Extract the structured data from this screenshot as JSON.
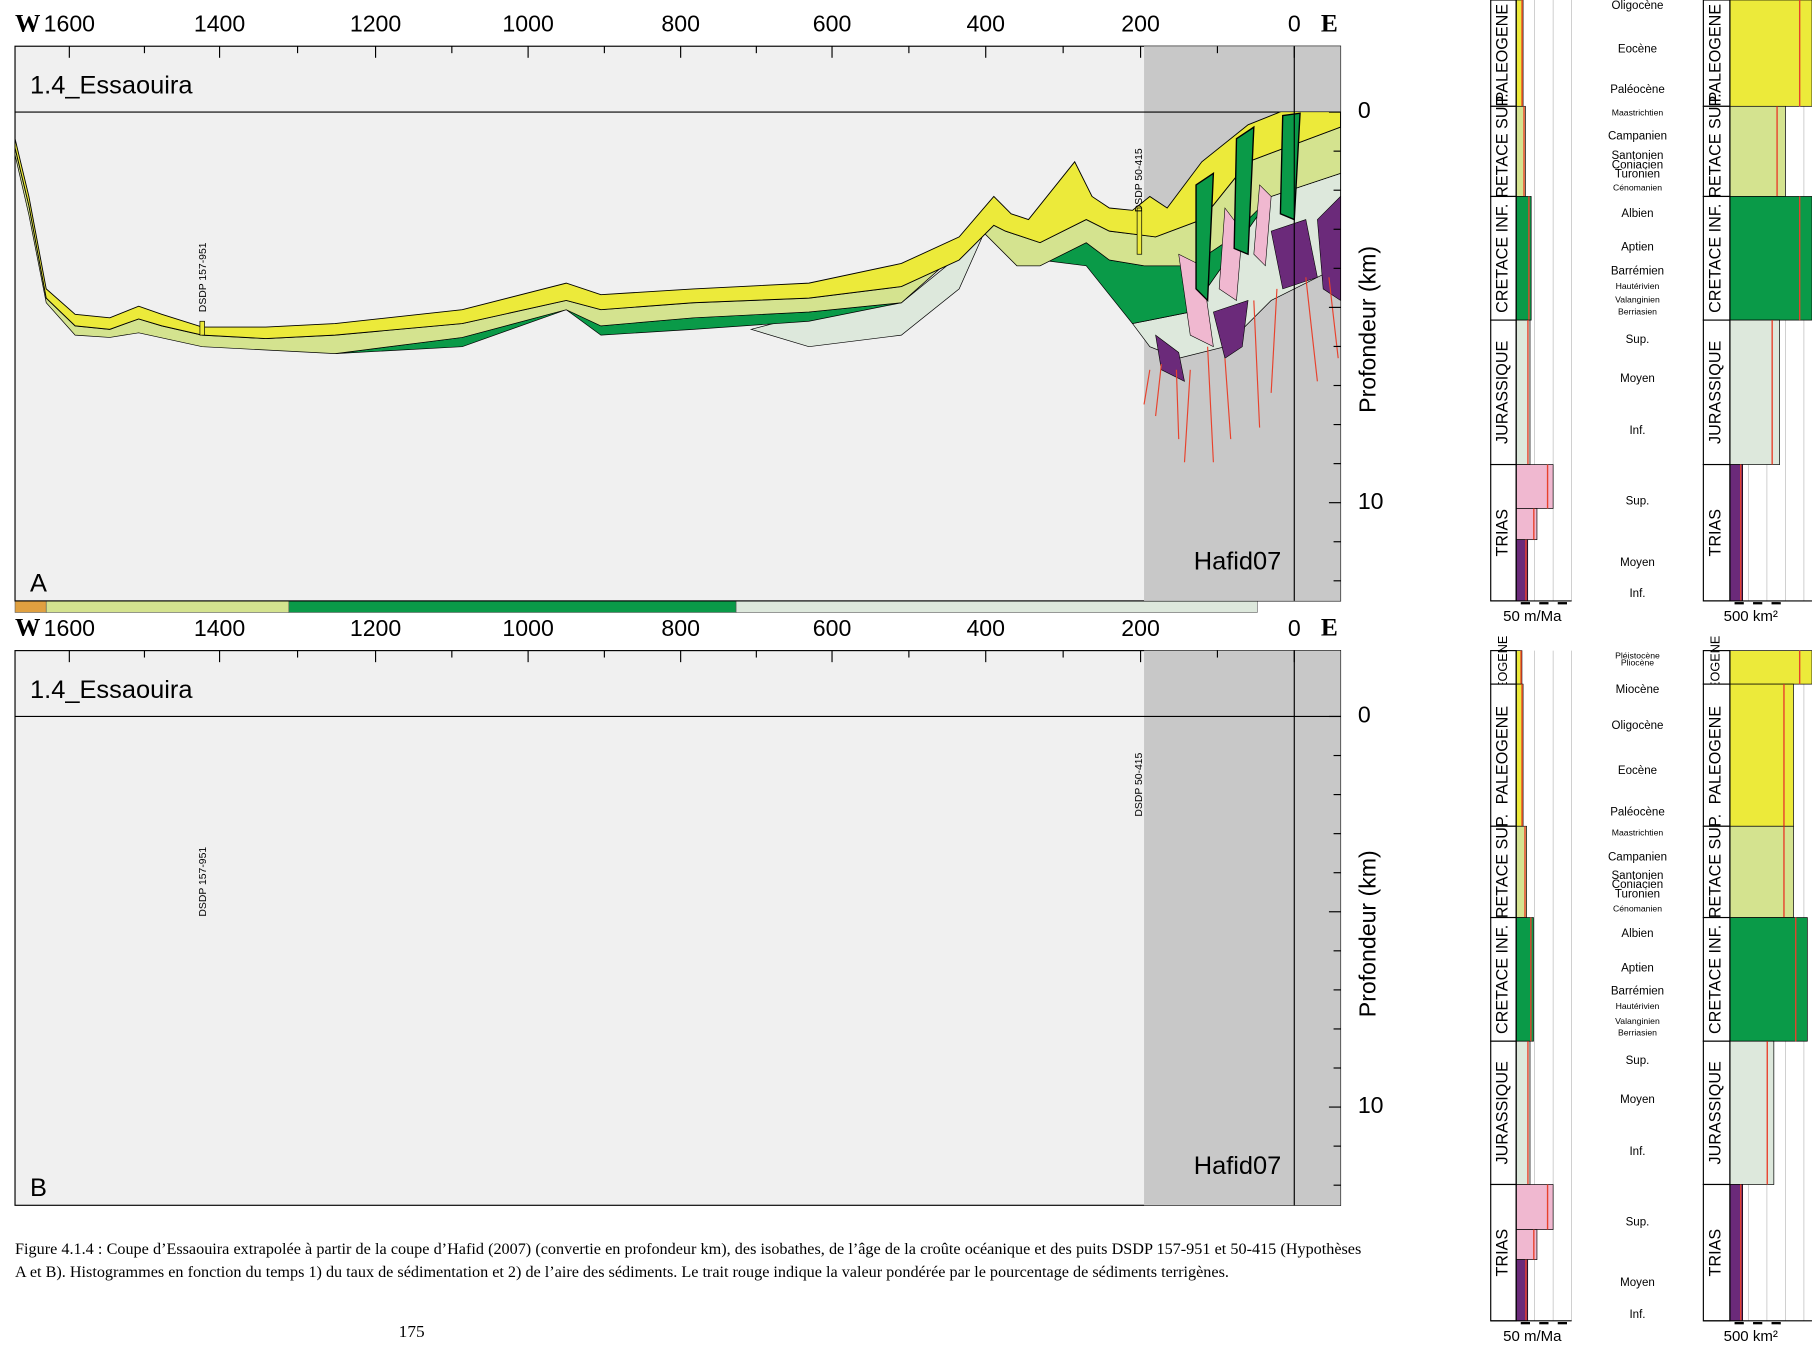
{
  "sections": [
    {
      "west": "W",
      "east": "E",
      "xticks": [
        "1600",
        "1400",
        "1200",
        "1000",
        "800",
        "600",
        "400",
        "200",
        "0"
      ],
      "title": "1.4_Essaouira",
      "yticks": [
        "0",
        "10"
      ],
      "ylabel": "Profondeur (km)",
      "source": "Hafid07",
      "panel": "A",
      "wells": [
        "DSDP 157-951",
        "DSDP 50-415"
      ]
    },
    {
      "west": "W",
      "east": "E",
      "xticks": [
        "1600",
        "1400",
        "1200",
        "1000",
        "800",
        "600",
        "400",
        "200",
        "0"
      ],
      "title": "1.4_Essaouira",
      "yticks": [
        "0",
        "10"
      ],
      "ylabel": "Profondeur (km)",
      "source": "Hafid07",
      "panel": "B",
      "wells": [
        "DSDP 157-951",
        "DSDP 50-415"
      ]
    }
  ],
  "histograms": [
    {
      "periods": [
        "PALEOGENE",
        "CRETACE SUP.",
        "CRETACE INF.",
        "JURASSIQUE",
        "TRIAS"
      ],
      "stages": [
        "Oligocène",
        "Eocène",
        "Paléocène",
        "Maastrichtien",
        "Campanien",
        "Santonien",
        "Coniacien",
        "Turonien",
        "Cénomanien",
        "Albien",
        "Aptien",
        "Barrémien",
        "Hautérivien",
        "Valanginien",
        "Berriasien",
        "Sup.",
        "Moyen",
        "Inf.",
        "Sup.",
        "Moyen",
        "Inf."
      ],
      "scale_rate": "50 m/Ma",
      "scale_area": "500 km²"
    },
    {
      "periods": [
        "NEOGENE",
        "PALEOGENE",
        "CRETACE SUP.",
        "CRETACE INF.",
        "JURASSIQUE",
        "TRIAS"
      ],
      "stages": [
        "Pléistocène",
        "Pliocène",
        "Miocène",
        "Oligocène",
        "Eocène",
        "Paléocène",
        "Maastrichtien",
        "Campanien",
        "Santonien",
        "Coniacien",
        "Turonien",
        "Cénomanien",
        "Albien",
        "Aptien",
        "Barrémien",
        "Hautérivien",
        "Valanginien",
        "Berriasien",
        "Sup.",
        "Moyen",
        "Inf.",
        "Sup.",
        "Moyen",
        "Inf."
      ],
      "scale_rate": "50 m/Ma",
      "scale_area": "500 km²"
    }
  ],
  "caption": "Figure 4.1.4 : Coupe d’Essaouira extrapolée à partir de la coupe d’Hafid (2007) (convertie en profondeur km), des isobathes, de l’âge de la croûte océanique et des puits DSDP 157-951 et 50-415 (Hypothèses A et B). Histogrammes en fonction du temps 1) du taux de sédimentation et 2) de l’aire des sédiments. Le trait rouge indique la valeur pondérée par le pourcentage de sédiments terrigènes.",
  "page_number": "175"
}
